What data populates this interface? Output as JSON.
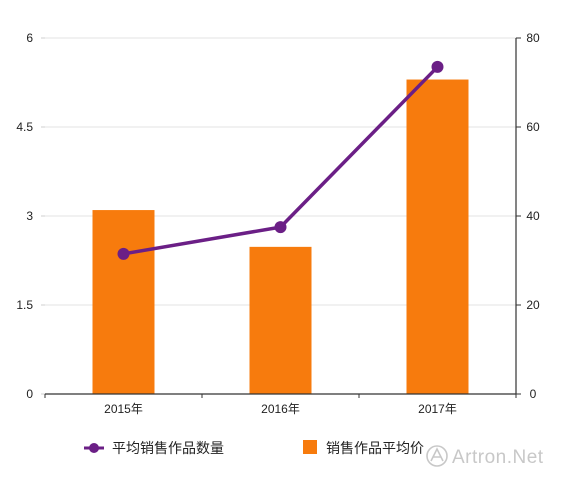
{
  "chart_data": {
    "type": "bar",
    "categories": [
      "2015年",
      "2016年",
      "2017年"
    ],
    "series": [
      {
        "name": "销售作品平均价",
        "type": "bar",
        "axis": "left",
        "values": [
          3.1,
          2.48,
          5.3
        ],
        "color": "#f77b0d"
      },
      {
        "name": "平均销售作品数量",
        "type": "line",
        "axis": "right",
        "values": [
          31.5,
          37.5,
          73.5
        ],
        "color": "#6b1f86"
      }
    ],
    "y_left": {
      "ylim": [
        0,
        6
      ],
      "ticks": [
        0,
        1.5,
        3,
        4.5,
        6
      ],
      "tick_labels": [
        "0",
        "1.5",
        "3",
        "4.5",
        "6"
      ]
    },
    "y_right": {
      "ylim": [
        0,
        80
      ],
      "ticks": [
        0,
        20,
        40,
        60,
        80
      ],
      "tick_labels": [
        "0",
        "20",
        "40",
        "60",
        "80"
      ]
    },
    "grid": true,
    "legend_position": "bottom",
    "title": "",
    "xlabel": "",
    "ylabel": ""
  },
  "watermark": {
    "text": "Artron.Net"
  }
}
